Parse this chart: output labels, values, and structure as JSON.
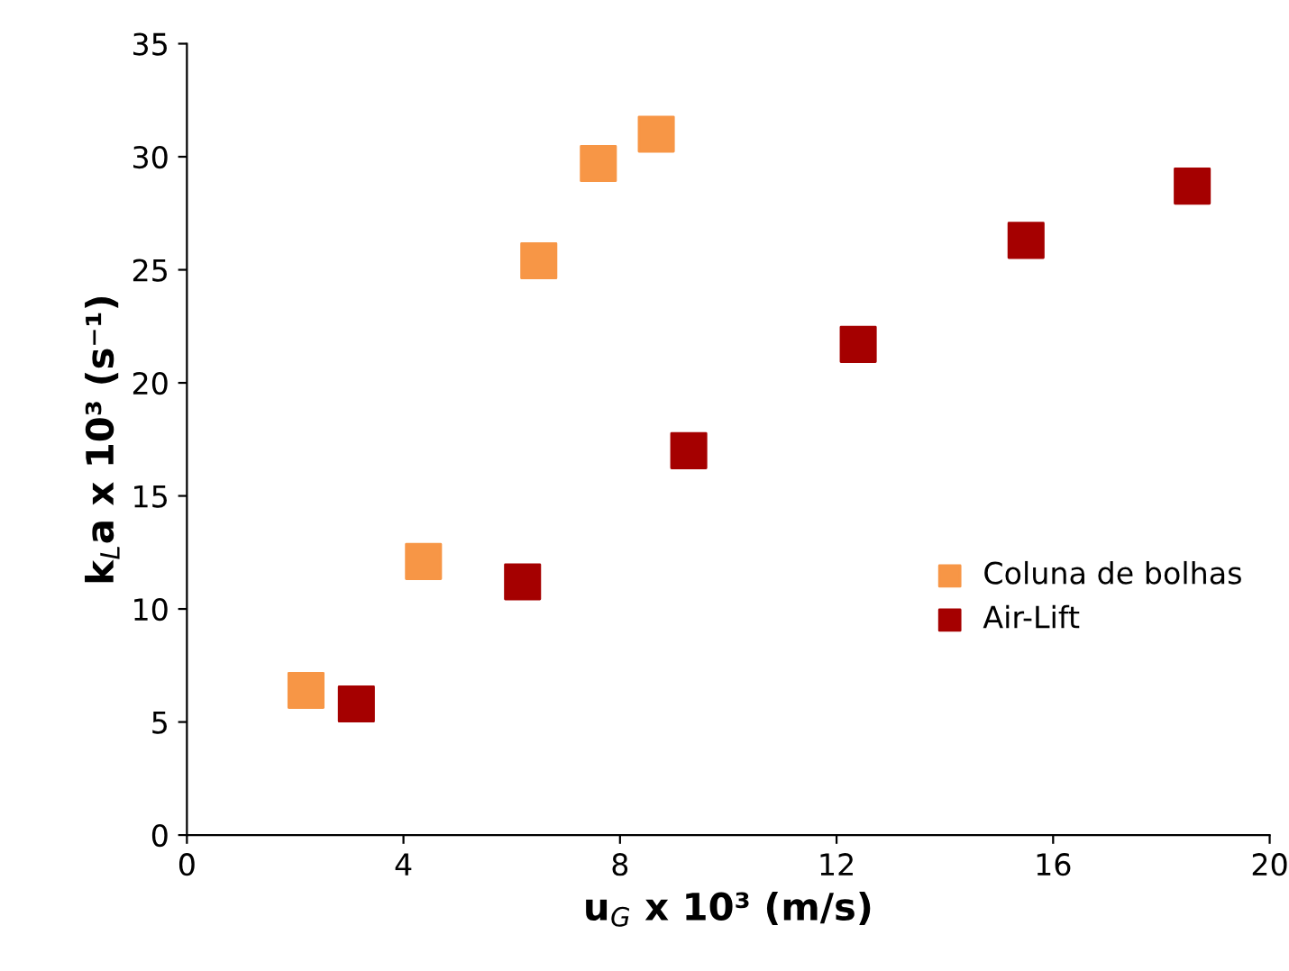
{
  "chart_data": {
    "type": "scatter",
    "xlabel": "u$_{G}$ x 10³ (m/s)",
    "ylabel": "k$_{L}$a x 10³ (s⁻¹)",
    "series": [
      {
        "name": "Coluna de bolhas",
        "color": "#f79646",
        "x": [
          2.2,
          4.37,
          6.5,
          7.6,
          8.67
        ],
        "values": [
          6.4,
          12.1,
          25.4,
          29.7,
          31.0
        ]
      },
      {
        "name": "Air-Lift",
        "color": "#a50000",
        "x": [
          3.13,
          6.2,
          9.27,
          12.4,
          15.5,
          18.57
        ],
        "values": [
          5.8,
          11.2,
          17.0,
          21.7,
          26.3,
          28.7
        ]
      }
    ],
    "xlim": [
      0,
      20
    ],
    "xticks": [
      0,
      4,
      8,
      12,
      16,
      20
    ],
    "ylim": [
      0,
      35
    ],
    "yticks": [
      0,
      5,
      10,
      15,
      20,
      25,
      30,
      35
    ],
    "marker": "square",
    "grid": false,
    "legend": "right"
  }
}
